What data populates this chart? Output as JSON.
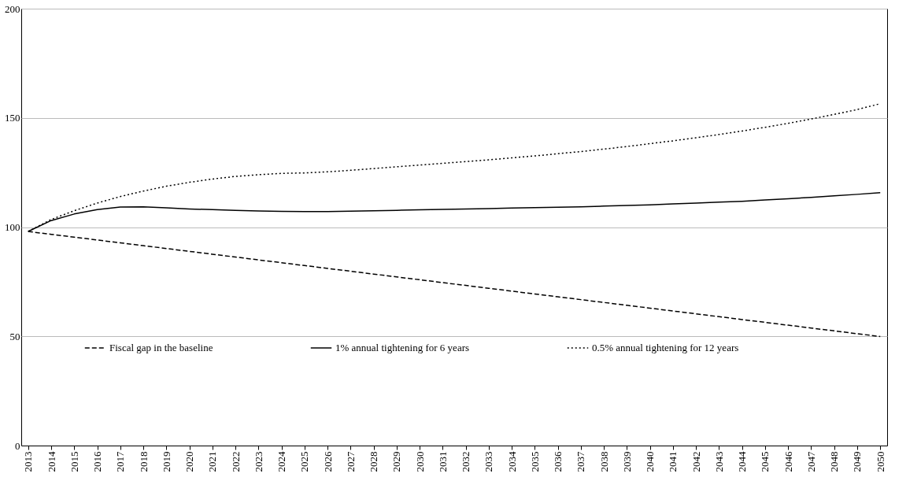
{
  "chart_data": {
    "type": "line",
    "categories": [
      "2013",
      "2014",
      "2015",
      "2016",
      "2017",
      "2018",
      "2019",
      "2020",
      "2021",
      "2022",
      "2023",
      "2024",
      "2025",
      "2026",
      "2027",
      "2028",
      "2029",
      "2030",
      "2031",
      "2032",
      "2033",
      "2034",
      "2035",
      "2036",
      "2037",
      "2038",
      "2039",
      "2040",
      "2041",
      "2042",
      "2043",
      "2044",
      "2045",
      "2046",
      "2047",
      "2048",
      "2049",
      "2050"
    ],
    "series": [
      {
        "name": "Fiscal gap in the baseline",
        "color": "#000000",
        "line_style": "dashed",
        "values": [
          98,
          96.7,
          95.4,
          94.1,
          92.8,
          91.5,
          90.2,
          88.9,
          87.6,
          86.3,
          85,
          83.7,
          82.4,
          81.1,
          79.8,
          78.5,
          77.2,
          75.9,
          74.6,
          73.3,
          72,
          70.7,
          69.4,
          68.1,
          66.8,
          65.5,
          64.2,
          62.9,
          61.6,
          60.3,
          59,
          57.7,
          56.4,
          55.1,
          53.8,
          52.5,
          51.2,
          49.9
        ]
      },
      {
        "name": "1% annual tightening for 6 years",
        "color": "#000000",
        "line_style": "solid",
        "values": [
          98,
          103,
          106,
          108,
          109.2,
          109.3,
          108.8,
          108.3,
          108,
          107.7,
          107.4,
          107.2,
          107.1,
          107.1,
          107.3,
          107.5,
          107.7,
          107.9,
          108.1,
          108.3,
          108.5,
          108.7,
          108.9,
          109.1,
          109.3,
          109.6,
          109.9,
          110.2,
          110.6,
          111,
          111.4,
          111.8,
          112.4,
          113,
          113.6,
          114.3,
          115,
          115.8
        ]
      },
      {
        "name": "0.5% annual tightening for 12 years",
        "color": "#000000",
        "line_style": "dotted",
        "values": [
          98,
          103.5,
          107.5,
          111,
          114,
          116.5,
          118.7,
          120.5,
          122,
          123.2,
          124,
          124.6,
          124.8,
          125.3,
          126,
          126.8,
          127.6,
          128.4,
          129.2,
          130,
          130.8,
          131.7,
          132.6,
          133.6,
          134.6,
          135.7,
          136.9,
          138.2,
          139.5,
          140.9,
          142.4,
          144,
          145.7,
          147.5,
          149.5,
          151.6,
          153.8,
          156.5
        ]
      }
    ],
    "ylim": [
      0,
      200
    ],
    "yticks": [
      0,
      50,
      100,
      150,
      200
    ],
    "grid": "y",
    "legend": "bottom",
    "marker": "none"
  }
}
